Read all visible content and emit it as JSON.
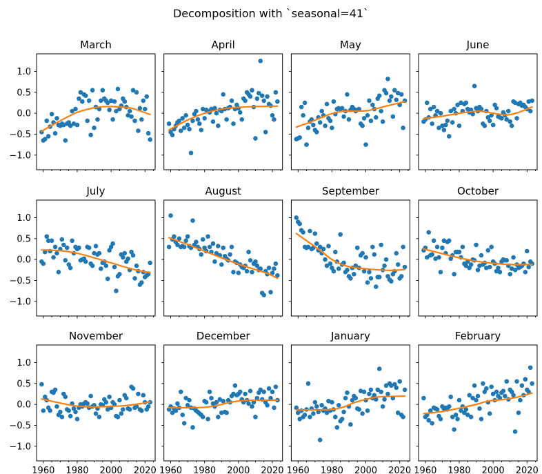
{
  "title": "Decomposition with `seasonal=41`",
  "colors": {
    "scatter": "#1f77b4",
    "trend": "#ff7f0e",
    "axis": "#000000",
    "background": "#ffffff",
    "text": "#000000"
  },
  "axes": {
    "x_ticks": [
      "1960",
      "1980",
      "2000",
      "2020"
    ],
    "x_tick_values": [
      1960,
      1980,
      2000,
      2020
    ],
    "x_minor_step": 5,
    "y_ticks": [
      "1.0",
      "0.5",
      "0.0",
      "−0.5",
      "−1.0"
    ],
    "y_tick_values": [
      1.0,
      0.5,
      0.0,
      -0.5,
      -1.0
    ]
  },
  "chart_data": {
    "type": "scatter",
    "layout": {
      "rows": 3,
      "cols": 4,
      "sharex": true,
      "sharey": true,
      "grid": false,
      "legend": "none"
    },
    "xlim": [
      1956,
      2026
    ],
    "ylim": [
      -1.35,
      1.42
    ],
    "xlabel": "",
    "ylabel": "",
    "start_year": 1959,
    "panels": [
      {
        "title": "March",
        "values": [
          -0.45,
          -0.65,
          -0.62,
          -0.18,
          -0.55,
          -0.32,
          -0.02,
          -0.22,
          -0.48,
          -0.12,
          -0.28,
          -0.3,
          -0.25,
          -0.28,
          -0.65,
          -0.25,
          -0.22,
          -0.3,
          0.05,
          -0.25,
          0.1,
          -0.28,
          0.35,
          0.5,
          0.28,
          0.45,
          0.42,
          -0.18,
          0.3,
          -0.52,
          0.55,
          -0.35,
          0.15,
          -0.15,
          0.1,
          0.3,
          0.55,
          0.35,
          0.3,
          0.25,
          0.08,
          0.3,
          -0.15,
          0.28,
          0.05,
          0.58,
          0.1,
          0.18,
          0.35,
          0.28,
          0.15,
          -0.05,
          0.05,
          -0.08,
          0.55,
          -0.18,
          0.5,
          -0.42,
          0.12,
          -0.15,
          0.3,
          0.1,
          0.4,
          -0.48,
          -0.63
        ],
        "trend": {
          "x": [
            1959,
            1970,
            1980,
            1990,
            1997,
            2005,
            2012,
            2023
          ],
          "y": [
            -0.43,
            -0.18,
            0.02,
            0.13,
            0.16,
            0.15,
            0.12,
            -0.03
          ]
        }
      },
      {
        "title": "April",
        "values": [
          -0.25,
          -0.45,
          -0.52,
          -0.38,
          -0.3,
          -0.22,
          -0.18,
          -0.42,
          -0.12,
          -0.35,
          -0.05,
          -0.28,
          -0.38,
          -0.95,
          -0.18,
          -0.02,
          0.05,
          -0.15,
          -0.25,
          -0.4,
          0.1,
          -0.12,
          0.08,
          0.05,
          0.02,
          0.1,
          -0.2,
          0.12,
          0.0,
          -0.3,
          0.08,
          0.05,
          0.45,
          0.1,
          -0.15,
          0.12,
          0.15,
          0.3,
          -0.25,
          0.1,
          0.2,
          0.12,
          0.02,
          -0.15,
          0.35,
          0.3,
          0.5,
          0.45,
          0.4,
          0.55,
          0.15,
          -0.6,
          0.35,
          0.48,
          1.25,
          0.42,
          0.3,
          -0.45,
          0.4,
          0.22,
          0.18,
          -0.05,
          -0.15,
          0.5,
          0.28
        ],
        "trend": {
          "x": [
            1959,
            1970,
            1980,
            1990,
            2000,
            2010,
            2023
          ],
          "y": [
            -0.4,
            -0.16,
            0.0,
            0.1,
            0.14,
            0.16,
            0.17
          ]
        }
      },
      {
        "title": "May",
        "values": [
          -0.62,
          -0.6,
          -0.58,
          0.15,
          -0.05,
          0.25,
          -0.75,
          -0.35,
          -0.2,
          -0.15,
          -0.28,
          -0.4,
          -0.45,
          -0.1,
          -0.22,
          0.05,
          -0.05,
          -0.3,
          0.22,
          -0.12,
          -0.18,
          -0.35,
          0.28,
          -0.02,
          0.1,
          0.12,
          0.1,
          0.12,
          -0.08,
          0.05,
          0.45,
          -0.15,
          0.08,
          0.15,
          0.1,
          0.05,
          0.08,
          0.1,
          -0.25,
          -0.3,
          -0.12,
          -0.75,
          -0.05,
          0.3,
          -0.18,
          0.2,
          0.1,
          -0.1,
          0.35,
          0.42,
          0.05,
          -0.2,
          0.55,
          0.48,
          0.82,
          0.3,
          0.4,
          -0.08,
          0.55,
          0.32,
          0.48,
          0.2,
          0.45,
          -0.35,
          0.3
        ],
        "trend": {
          "x": [
            1959,
            1968,
            1977,
            1985,
            1995,
            2002,
            2012,
            2023
          ],
          "y": [
            -0.33,
            -0.2,
            -0.05,
            0.04,
            0.05,
            0.07,
            0.17,
            0.28
          ]
        }
      },
      {
        "title": "June",
        "values": [
          -0.2,
          -0.15,
          0.25,
          -0.1,
          0.1,
          -0.25,
          0.15,
          -0.05,
          0.05,
          -0.35,
          0.0,
          -0.3,
          -0.4,
          -0.28,
          -0.18,
          -0.55,
          0.05,
          -0.22,
          0.1,
          0.0,
          0.2,
          -0.3,
          0.25,
          0.05,
          0.22,
          0.25,
          0.1,
          0.02,
          0.08,
          -0.02,
          0.65,
          0.12,
          0.05,
          0.15,
          0.1,
          -0.25,
          -0.3,
          0.05,
          -0.1,
          -0.18,
          -0.05,
          -0.28,
          0.2,
          0.12,
          -0.08,
          -0.1,
          -0.12,
          0.02,
          -0.05,
          -0.15,
          0.05,
          -0.2,
          -0.3,
          0.28,
          0.25,
          -0.12,
          0.22,
          0.25,
          0.18,
          0.2,
          0.15,
          0.1,
          0.28,
          0.05,
          0.3
        ],
        "trend": {
          "x": [
            1959,
            1970,
            1982,
            1992,
            2000,
            2008,
            2015,
            2023
          ],
          "y": [
            -0.13,
            -0.07,
            0.01,
            0.05,
            0.0,
            -0.04,
            0.02,
            0.15
          ]
        }
      },
      {
        "title": "July",
        "values": [
          -0.05,
          -0.1,
          0.18,
          0.55,
          0.45,
          0.2,
          0.45,
          0.05,
          0.3,
          0.15,
          -0.3,
          0.25,
          0.48,
          0.35,
          -0.02,
          0.28,
          -0.12,
          -0.2,
          0.45,
          0.15,
          0.3,
          0.25,
          0.28,
          -0.02,
          0.0,
          0.02,
          -0.05,
          0.3,
          0.28,
          -0.1,
          -0.15,
          0.15,
          0.32,
          0.12,
          0.15,
          -0.22,
          -0.08,
          -0.05,
          -0.15,
          -0.46,
          0.22,
          0.3,
          0.38,
          -0.18,
          -0.75,
          -0.4,
          -0.35,
          0.12,
          0.05,
          0.15,
          -0.05,
          0.02,
          -0.25,
          0.18,
          0.1,
          -0.45,
          -0.15,
          -0.28,
          -0.6,
          -0.55,
          -0.3,
          -0.42,
          -0.38,
          -0.35,
          -0.08
        ],
        "trend": {
          "x": [
            1959,
            1970,
            1980,
            1990,
            2000,
            2010,
            2018,
            2023
          ],
          "y": [
            0.23,
            0.21,
            0.15,
            0.04,
            -0.08,
            -0.2,
            -0.28,
            -0.31
          ]
        }
      },
      {
        "title": "August",
        "values": [
          0.3,
          1.05,
          0.48,
          0.55,
          0.42,
          0.35,
          0.5,
          0.3,
          0.32,
          0.3,
          0.45,
          0.55,
          0.32,
          0.28,
          0.93,
          0.35,
          0.42,
          0.3,
          0.25,
          0.12,
          0.48,
          0.28,
          0.2,
          0.55,
          0.3,
          0.18,
          0.38,
          -0.05,
          0.15,
          0.32,
          0.1,
          -0.12,
          0.28,
          0.08,
          0.02,
          -0.02,
          0.12,
          0.3,
          -0.3,
          -0.05,
          -0.08,
          -0.32,
          -0.12,
          -0.18,
          -0.2,
          -0.15,
          -0.28,
          0.18,
          -0.02,
          -0.3,
          -0.1,
          -0.05,
          -0.15,
          -0.25,
          -0.22,
          -0.8,
          -0.85,
          -0.28,
          -0.35,
          -0.2,
          -0.78,
          -0.32,
          -0.22,
          -0.1,
          -0.38
        ],
        "trend": {
          "x": [
            1959,
            1970,
            1980,
            1990,
            2000,
            2010,
            2017,
            2023
          ],
          "y": [
            0.52,
            0.36,
            0.2,
            0.04,
            -0.11,
            -0.24,
            -0.33,
            -0.45
          ]
        }
      },
      {
        "title": "September",
        "values": [
          1.0,
          0.9,
          0.85,
          0.7,
          0.65,
          0.3,
          0.28,
          0.3,
          0.68,
          0.25,
          0.28,
          0.62,
          0.38,
          0.22,
          0.3,
          0.15,
          0.25,
          0.0,
          -0.15,
          0.32,
          -0.1,
          -0.2,
          -0.28,
          0.18,
          -0.05,
          -0.22,
          0.6,
          -0.12,
          -0.08,
          -0.3,
          -0.25,
          -0.4,
          -0.45,
          -0.2,
          -0.35,
          -0.15,
          0.28,
          -0.2,
          0.1,
          0.15,
          -0.28,
          0.05,
          -0.55,
          -0.3,
          -0.45,
          0.3,
          0.12,
          -0.65,
          -0.42,
          -0.42,
          0.35,
          -0.25,
          -0.15,
          0.0,
          -0.4,
          -0.48,
          -0.52,
          -0.35,
          -0.28,
          0.15,
          -0.12,
          -0.45,
          -0.4,
          0.3,
          -0.18
        ],
        "trend": {
          "x": [
            1959,
            1965,
            1972,
            1980,
            1988,
            1995,
            2005,
            2015,
            2023
          ],
          "y": [
            0.62,
            0.45,
            0.25,
            0.0,
            -0.15,
            -0.2,
            -0.24,
            -0.26,
            -0.24
          ]
        }
      },
      {
        "title": "October",
        "values": [
          0.22,
          0.28,
          0.05,
          0.65,
          0.1,
          0.12,
          0.45,
          0.02,
          0.3,
          0.05,
          -0.3,
          0.28,
          0.45,
          0.15,
          0.42,
          0.45,
          0.02,
          0.1,
          -0.35,
          0.18,
          0.18,
          0.18,
          0.05,
          0.3,
          -0.1,
          -0.15,
          -0.05,
          -0.2,
          -0.12,
          0.0,
          -0.02,
          0.35,
          -0.25,
          -0.15,
          0.1,
          -0.12,
          -0.08,
          -0.2,
          0.22,
          -0.18,
          0.3,
          -0.05,
          -0.1,
          -0.28,
          -0.2,
          -0.3,
          -0.05,
          0.0,
          -0.02,
          -0.02,
          -0.15,
          -0.35,
          -0.22,
          0.05,
          -0.25,
          -0.12,
          -0.2,
          -0.18,
          -0.15,
          -0.1,
          -0.3,
          0.2,
          -0.18,
          -0.05,
          -0.1
        ],
        "trend": {
          "x": [
            1959,
            1970,
            1980,
            1990,
            2000,
            2010,
            2023
          ],
          "y": [
            0.25,
            0.14,
            0.04,
            -0.04,
            -0.09,
            -0.12,
            -0.12
          ]
        }
      },
      {
        "title": "November",
        "values": [
          0.48,
          -0.15,
          0.18,
          0.1,
          -0.08,
          -0.15,
          0.3,
          0.28,
          0.35,
          -0.05,
          -0.25,
          -0.18,
          -0.3,
          0.25,
          0.18,
          -0.12,
          -0.15,
          -0.28,
          0.02,
          -0.1,
          -0.18,
          -0.35,
          -0.08,
          0.0,
          -0.05,
          0.02,
          0.05,
          0.02,
          -0.08,
          0.2,
          -0.05,
          -0.02,
          -0.22,
          -0.1,
          -0.3,
          0.0,
          -0.02,
          0.12,
          0.05,
          -0.12,
          0.18,
          -0.08,
          0.05,
          0.0,
          -0.28,
          -0.3,
          0.1,
          -0.22,
          -0.12,
          0.22,
          0.15,
          -0.1,
          -0.12,
          0.42,
          0.38,
          -0.08,
          -0.05,
          0.25,
          -0.12,
          -0.15,
          0.22,
          0.05,
          -0.12,
          -0.05,
          0.05
        ],
        "trend": {
          "x": [
            1959,
            1968,
            1978,
            1988,
            1998,
            2008,
            2016,
            2023
          ],
          "y": [
            0.13,
            0.05,
            -0.03,
            -0.06,
            -0.05,
            -0.03,
            0.01,
            0.06
          ]
        }
      },
      {
        "title": "December",
        "values": [
          -0.12,
          -0.05,
          -0.2,
          -0.1,
          -0.15,
          0.02,
          -0.08,
          0.3,
          -0.25,
          -0.45,
          0.15,
          -0.02,
          0.1,
          -0.08,
          -0.55,
          -0.1,
          -0.15,
          -0.18,
          -0.22,
          -0.25,
          -0.3,
          0.08,
          0.05,
          -0.35,
          0.3,
          0.15,
          0.02,
          -0.05,
          0.05,
          -0.3,
          0.12,
          -0.2,
          0.08,
          -0.18,
          -0.2,
          0.1,
          0.05,
          0.2,
          0.25,
          0.45,
          0.22,
          0.25,
          0.3,
          0.12,
          0.05,
          0.25,
          0.1,
          0.02,
          0.32,
          -0.05,
          0.05,
          -0.3,
          0.15,
          0.28,
          0.35,
          0.12,
          0.3,
          0.05,
          -0.02,
          0.38,
          0.15,
          0.3,
          -0.08,
          0.42,
          0.1
        ],
        "trend": {
          "x": [
            1959,
            1970,
            1980,
            1987,
            1994,
            2000,
            2008,
            2023
          ],
          "y": [
            -0.08,
            -0.08,
            -0.07,
            -0.03,
            0.04,
            0.08,
            0.1,
            0.1
          ]
        }
      },
      {
        "title": "January",
        "values": [
          -0.08,
          -0.2,
          -0.35,
          -0.15,
          -0.3,
          -0.25,
          -0.12,
          0.5,
          -0.3,
          -0.1,
          -0.22,
          0.05,
          -0.05,
          -0.18,
          -0.85,
          -0.02,
          -0.15,
          -0.1,
          -0.2,
          0.08,
          -0.15,
          0.05,
          -0.12,
          -0.3,
          -0.55,
          -0.02,
          -0.4,
          -0.35,
          -0.18,
          0.15,
          0.28,
          -0.05,
          -0.48,
          0.1,
          0.2,
          0.15,
          -0.1,
          -0.12,
          0.32,
          -0.22,
          0.3,
          0.1,
          -0.15,
          0.25,
          0.35,
          0.15,
          0.22,
          0.12,
          0.35,
          0.85,
          0.3,
          -0.05,
          0.12,
          0.45,
          0.25,
          0.5,
          0.45,
          0.15,
          0.48,
          0.4,
          -0.2,
          0.55,
          -0.25,
          -0.3,
          0.35
        ],
        "trend": {
          "x": [
            1959,
            1970,
            1980,
            1987,
            1993,
            2000,
            2008,
            2023
          ],
          "y": [
            -0.13,
            -0.13,
            -0.12,
            -0.06,
            0.04,
            0.12,
            0.18,
            0.2
          ]
        }
      },
      {
        "title": "February",
        "values": [
          0.15,
          -0.3,
          -0.25,
          -0.38,
          -0.15,
          -0.45,
          -0.08,
          -0.1,
          -0.12,
          -0.28,
          -0.35,
          -0.05,
          -0.1,
          -0.08,
          -0.12,
          -0.05,
          0.18,
          -0.3,
          -0.6,
          -0.25,
          -0.35,
          0.1,
          -0.15,
          -0.05,
          -0.2,
          -0.12,
          -0.25,
          0.22,
          -0.3,
          0.15,
          0.45,
          0.1,
          0.2,
          -0.1,
          -0.35,
          0.5,
          0.3,
          0.38,
          0.05,
          -0.22,
          0.42,
          0.25,
          0.1,
          0.3,
          0.2,
          0.15,
          0.28,
          0.32,
          0.2,
          0.55,
          0.12,
          0.35,
          0.3,
          0.22,
          -0.65,
          0.55,
          -0.2,
          0.1,
          0.45,
          0.22,
          0.6,
          0.35,
          0.3,
          0.88,
          0.5
        ],
        "trend": {
          "x": [
            1959,
            1970,
            1980,
            1990,
            1997,
            2005,
            2014,
            2023
          ],
          "y": [
            -0.22,
            -0.17,
            -0.09,
            0.0,
            0.08,
            0.11,
            0.17,
            0.27
          ]
        }
      }
    ]
  }
}
